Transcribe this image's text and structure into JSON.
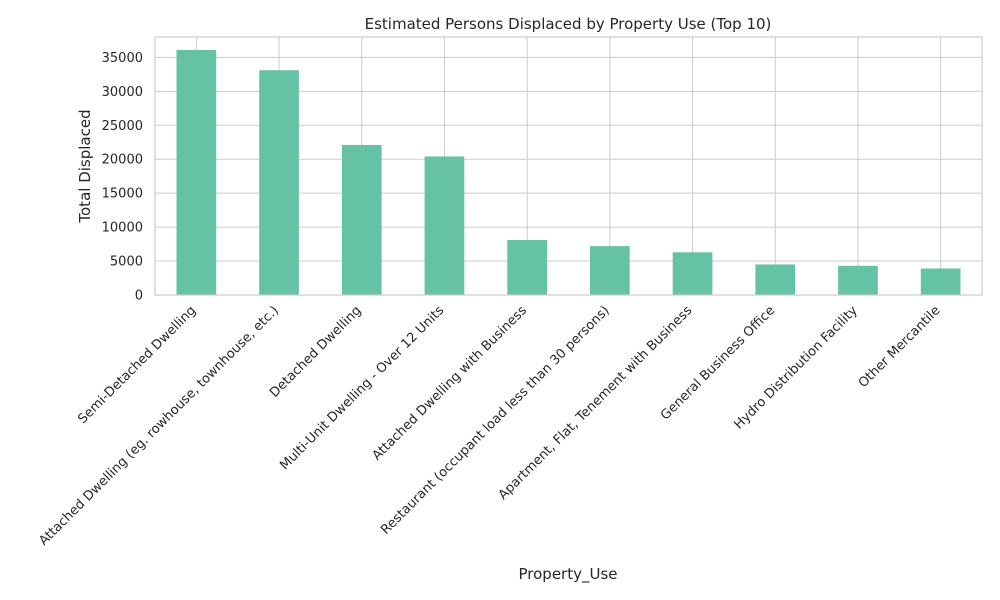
{
  "chart_data": {
    "type": "bar",
    "title": "Estimated Persons Displaced by Property Use (Top 10)",
    "xlabel": "Property_Use",
    "ylabel": "Total Displaced",
    "categories": [
      "Semi-Detached Dwelling",
      "Attached Dwelling (eg. rowhouse, townhouse, etc.)",
      "Detached Dwelling",
      "Multi-Unit Dwelling - Over 12 Units",
      "Attached Dwelling with Business",
      "Restaurant (occupant load less than 30 persons)",
      "Apartment, Flat, Tenement with Business",
      "General Business Office",
      "Hydro Distribution Facility",
      "Other Mercantile"
    ],
    "values": [
      36100,
      33100,
      22100,
      20400,
      8100,
      7200,
      6300,
      4500,
      4300,
      3900
    ],
    "ylim": [
      0,
      38000
    ],
    "yticks": [
      0,
      5000,
      10000,
      15000,
      20000,
      25000,
      30000,
      35000
    ],
    "grid": true,
    "bar_color": "#66c2a5",
    "legend": "none"
  }
}
